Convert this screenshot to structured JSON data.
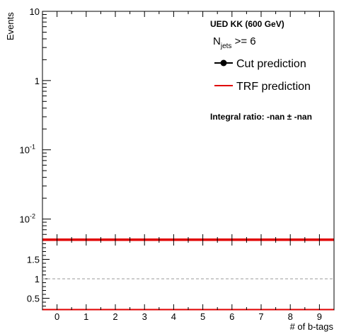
{
  "chart_data": {
    "type": "line",
    "annotation": {
      "sample": "UED KK (600 GeV)",
      "njets_main": "N",
      "njets_sub": "jets",
      "njets_rest": " >= 6",
      "integral_ratio": "Integral ratio: -nan ± -nan"
    },
    "legend": {
      "placement": "top-right",
      "entries": [
        {
          "label": "Cut prediction",
          "color": "#000000",
          "style": "marker-line"
        },
        {
          "label": "TRF prediction",
          "color": "#e00000",
          "style": "line"
        }
      ]
    },
    "top_panel": {
      "ylabel": "Events",
      "yscale": "log",
      "ylim": [
        0.005,
        10
      ],
      "y_ticks": [
        {
          "value": 10,
          "label": "10"
        },
        {
          "value": 1,
          "label": "1"
        },
        {
          "value": 0.1,
          "base": "10",
          "exp": "-1"
        },
        {
          "value": 0.01,
          "base": "10",
          "exp": "-2"
        }
      ],
      "series": [
        {
          "name": "TRF prediction",
          "color": "#e00000",
          "x": [
            -0.5,
            9.5
          ],
          "y": [
            0.005,
            0.005
          ]
        }
      ]
    },
    "ratio_panel": {
      "ylim": [
        0.2,
        2.0
      ],
      "y_ticks": [
        {
          "value": 0.5,
          "label": "0.5"
        },
        {
          "value": 1,
          "label": "1"
        },
        {
          "value": 1.5,
          "label": "1.5"
        }
      ],
      "reference_line": 1,
      "band_edges": [
        0.2,
        2.0
      ]
    },
    "x_axis": {
      "xlabel": "# of b-tags",
      "xlim": [
        -0.5,
        9.5
      ],
      "categories": [
        "0",
        "1",
        "2",
        "3",
        "4",
        "5",
        "6",
        "7",
        "8",
        "9"
      ]
    }
  }
}
